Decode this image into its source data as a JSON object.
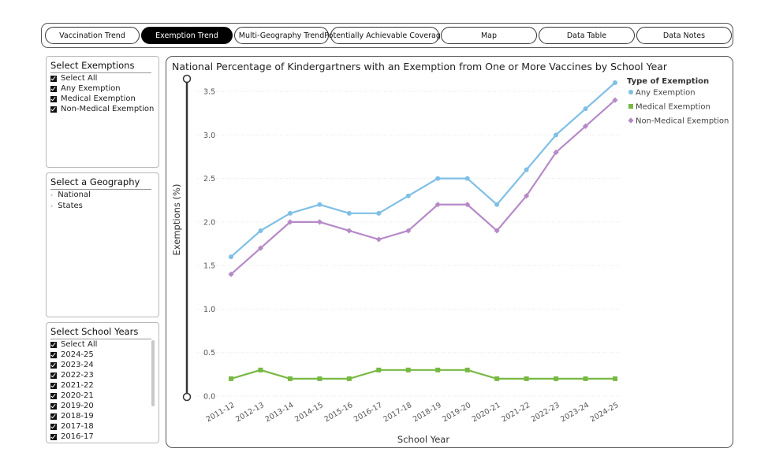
{
  "tabs": [
    {
      "label": "Vaccination Trend",
      "active": false
    },
    {
      "label": "Exemption Trend",
      "active": true
    },
    {
      "label": "Multi-Geography Trend",
      "active": false
    },
    {
      "label": "Potentially Achievable Coverage",
      "active": false
    },
    {
      "label": "Map",
      "active": false
    },
    {
      "label": "Data Table",
      "active": false
    },
    {
      "label": "Data Notes",
      "active": false
    }
  ],
  "exemptions_panel": {
    "title": "Select Exemptions",
    "items": [
      {
        "label": "Select All",
        "checked": true
      },
      {
        "label": "Any Exemption",
        "checked": true
      },
      {
        "label": "Medical Exemption",
        "checked": true
      },
      {
        "label": "Non-Medical Exemption",
        "checked": true
      }
    ]
  },
  "geography_panel": {
    "title": "Select a Geography",
    "items": [
      {
        "label": "National"
      },
      {
        "label": "States"
      }
    ]
  },
  "school_years_panel": {
    "title": "Select School Years",
    "items": [
      {
        "label": "Select All",
        "checked": true
      },
      {
        "label": "2024-25",
        "checked": true
      },
      {
        "label": "2023-24",
        "checked": true
      },
      {
        "label": "2022-23",
        "checked": true
      },
      {
        "label": "2021-22",
        "checked": true
      },
      {
        "label": "2020-21",
        "checked": true
      },
      {
        "label": "2019-20",
        "checked": true
      },
      {
        "label": "2018-19",
        "checked": true
      },
      {
        "label": "2017-18",
        "checked": true
      },
      {
        "label": "2016-17",
        "checked": true
      }
    ]
  },
  "chart_data": {
    "type": "line",
    "title": "National Percentage of Kindergartners with an Exemption from One or More Vaccines by School Year",
    "xlabel": "School Year",
    "ylabel": "Exemptions (%)",
    "ylim": [
      0,
      3.6
    ],
    "yticks": [
      "0.0",
      "0.5",
      "1.0",
      "1.5",
      "2.0",
      "2.5",
      "3.0",
      "3.5"
    ],
    "categories": [
      "2011-12",
      "2012-13",
      "2013-14",
      "2014-15",
      "2015-16",
      "2016-17",
      "2017-18",
      "2018-19",
      "2019-20",
      "2020-21",
      "2021-22",
      "2022-23",
      "2023-24",
      "2024-25"
    ],
    "legend_title": "Type of Exemption",
    "legend_position": "top-right",
    "grid": true,
    "series": [
      {
        "name": "Any Exemption",
        "color": "#7fbfe6",
        "marker": "circle",
        "values": [
          1.6,
          1.9,
          2.1,
          2.2,
          2.1,
          2.1,
          2.3,
          2.5,
          2.5,
          2.2,
          2.6,
          3.0,
          3.3,
          3.6
        ]
      },
      {
        "name": "Medical Exemption",
        "color": "#77b843",
        "marker": "square",
        "values": [
          0.2,
          0.3,
          0.2,
          0.2,
          0.2,
          0.3,
          0.3,
          0.3,
          0.3,
          0.2,
          0.2,
          0.2,
          0.2,
          0.2
        ]
      },
      {
        "name": "Non-Medical Exemption",
        "color": "#b689c7",
        "marker": "diamond",
        "values": [
          1.4,
          1.7,
          2.0,
          2.0,
          1.9,
          1.8,
          1.9,
          2.2,
          2.2,
          1.9,
          2.3,
          2.8,
          3.1,
          3.4
        ]
      }
    ]
  }
}
